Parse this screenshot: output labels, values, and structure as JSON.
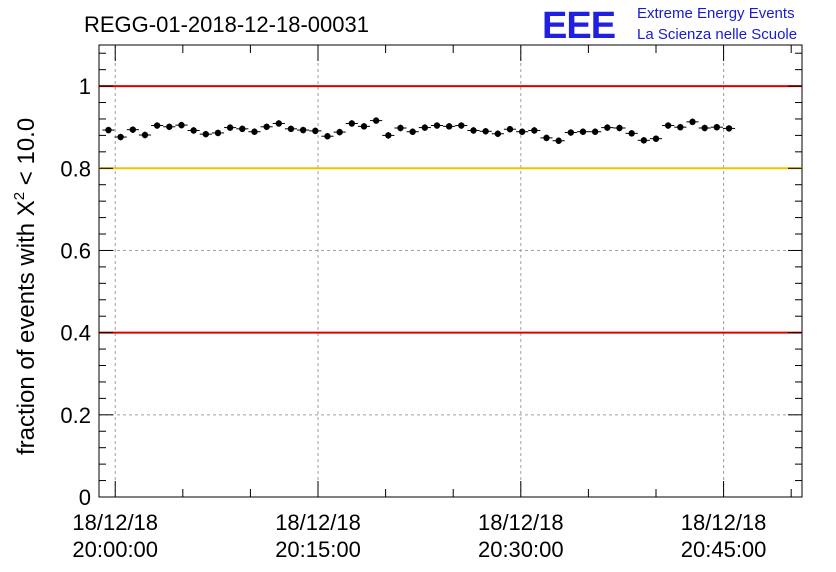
{
  "title": "REGG-01-2018-12-18-00031",
  "logo": {
    "mark": "EEE",
    "line1": "Extreme Energy Events",
    "line2": "La Scienza nelle Scuole"
  },
  "colors": {
    "threshold_red": "#e00000",
    "threshold_yellow": "#f5c000",
    "points": "#000000",
    "grid": "#a0a0a0",
    "logo": "#2020e0"
  },
  "chart_data": {
    "type": "scatter",
    "xlabel": "",
    "ylabel_prefix": "fraction of events with ",
    "ylabel_symbol": "X",
    "ylabel_sup": "2",
    "ylabel_suffix": " < 10.0",
    "ylim": [
      0,
      1.1
    ],
    "yticks": [
      0,
      0.2,
      0.4,
      0.6,
      0.8,
      1
    ],
    "ytick_labels": [
      "0",
      "0.2",
      "0.4",
      "0.6",
      "0.8",
      "1"
    ],
    "xlim_minutes_after_2000": [
      -1.2,
      50.8
    ],
    "xticks": [
      {
        "minute": 0,
        "date": "18/12/18",
        "time": "20:00:00"
      },
      {
        "minute": 15,
        "date": "18/12/18",
        "time": "20:15:00"
      },
      {
        "minute": 30,
        "date": "18/12/18",
        "time": "20:30:00"
      },
      {
        "minute": 45,
        "date": "18/12/18",
        "time": "20:45:00"
      }
    ],
    "grid": true,
    "threshold_lines": [
      {
        "y": 1.0,
        "color": "red"
      },
      {
        "y": 0.8,
        "color": "yellow"
      },
      {
        "y": 0.4,
        "color": "red"
      }
    ],
    "series": [
      {
        "x_start_minute": -0.5,
        "x_step_minutes": 0.9,
        "y_error": 0.008,
        "values": [
          0.893,
          0.876,
          0.894,
          0.881,
          0.904,
          0.901,
          0.905,
          0.892,
          0.883,
          0.886,
          0.899,
          0.896,
          0.889,
          0.901,
          0.909,
          0.896,
          0.893,
          0.891,
          0.878,
          0.888,
          0.909,
          0.902,
          0.916,
          0.88,
          0.898,
          0.889,
          0.899,
          0.904,
          0.902,
          0.904,
          0.892,
          0.89,
          0.884,
          0.895,
          0.889,
          0.892,
          0.874,
          0.867,
          0.887,
          0.889,
          0.889,
          0.899,
          0.898,
          0.885,
          0.868,
          0.872,
          0.904,
          0.9,
          0.913,
          0.898,
          0.9,
          0.897
        ]
      }
    ]
  }
}
